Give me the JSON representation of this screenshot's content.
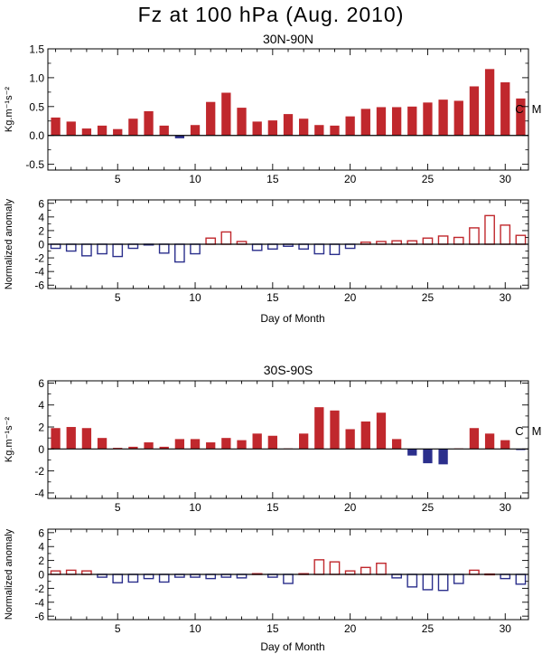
{
  "title": "Fz at 100 hPa (Aug. 2010)",
  "colors": {
    "positive": "#c0282d",
    "negative": "#2b2f8c",
    "axis": "#000000"
  },
  "chart_data": [
    {
      "type": "bar",
      "panel": "30N-90N flux",
      "style": "filled",
      "title": "30N-90N",
      "xlabel": "",
      "ylabel": "Kg.m⁻¹s⁻²",
      "xlim": [
        0.5,
        31.5
      ],
      "ylim": [
        -0.6,
        1.5
      ],
      "xticks": [
        5,
        10,
        15,
        20,
        25,
        30
      ],
      "yticks": [
        -0.5,
        0.0,
        0.5,
        1.0,
        1.5
      ],
      "ytick_labels": [
        "-0.5",
        "0.0",
        "0.5",
        "1.0",
        "1.5"
      ],
      "x": [
        1,
        2,
        3,
        4,
        5,
        6,
        7,
        8,
        9,
        10,
        11,
        12,
        13,
        14,
        15,
        16,
        17,
        18,
        19,
        20,
        21,
        22,
        23,
        24,
        25,
        26,
        27,
        28,
        29,
        30,
        31
      ],
      "values": [
        0.31,
        0.24,
        0.12,
        0.17,
        0.11,
        0.29,
        0.42,
        0.17,
        -0.05,
        0.18,
        0.58,
        0.74,
        0.48,
        0.24,
        0.26,
        0.37,
        0.29,
        0.18,
        0.17,
        0.33,
        0.46,
        0.49,
        0.49,
        0.5,
        0.57,
        0.62,
        0.6,
        0.85,
        1.15,
        0.92,
        0.64
      ],
      "annotations": [
        "C",
        "M"
      ]
    },
    {
      "type": "bar",
      "panel": "30N-90N anomaly",
      "style": "outline",
      "title": "",
      "xlabel": "Day of Month",
      "ylabel": "Normalized anomaly",
      "xlim": [
        0.5,
        31.5
      ],
      "ylim": [
        -6.5,
        6.5
      ],
      "xticks": [
        5,
        10,
        15,
        20,
        25,
        30
      ],
      "yticks": [
        -6,
        -4,
        -2,
        0,
        2,
        4,
        6
      ],
      "ytick_labels": [
        "-6",
        "-4",
        "-2",
        "0",
        "2",
        "4",
        "6"
      ],
      "x": [
        1,
        2,
        3,
        4,
        5,
        6,
        7,
        8,
        9,
        10,
        11,
        12,
        13,
        14,
        15,
        16,
        17,
        18,
        19,
        20,
        21,
        22,
        23,
        24,
        25,
        26,
        27,
        28,
        29,
        30,
        31
      ],
      "values": [
        -0.6,
        -1.0,
        -1.7,
        -1.4,
        -1.8,
        -0.6,
        -0.1,
        -1.3,
        -2.6,
        -1.4,
        0.9,
        1.8,
        0.4,
        -0.9,
        -0.7,
        -0.3,
        -0.7,
        -1.4,
        -1.5,
        -0.6,
        0.3,
        0.4,
        0.5,
        0.5,
        0.9,
        1.2,
        1.0,
        2.4,
        4.2,
        2.8,
        1.3
      ]
    },
    {
      "type": "bar",
      "panel": "30S-90S flux",
      "style": "filled",
      "title": "30S-90S",
      "xlabel": "",
      "ylabel": "Kg.m⁻¹s⁻²",
      "xlim": [
        0.5,
        31.5
      ],
      "ylim": [
        -4.5,
        6.2
      ],
      "xticks": [
        5,
        10,
        15,
        20,
        25,
        30
      ],
      "yticks": [
        -4,
        -2,
        0,
        2,
        4,
        6
      ],
      "ytick_labels": [
        "-4",
        "-2",
        "0",
        "2",
        "4",
        "6"
      ],
      "x": [
        1,
        2,
        3,
        4,
        5,
        6,
        7,
        8,
        9,
        10,
        11,
        12,
        13,
        14,
        15,
        16,
        17,
        18,
        19,
        20,
        21,
        22,
        23,
        24,
        25,
        26,
        27,
        28,
        29,
        30,
        31
      ],
      "values": [
        1.9,
        2.0,
        1.9,
        1.0,
        0.1,
        0.2,
        0.6,
        0.2,
        0.9,
        0.9,
        0.6,
        1.0,
        0.8,
        1.4,
        1.2,
        0.05,
        1.4,
        3.8,
        3.5,
        1.8,
        2.5,
        3.3,
        0.9,
        -0.6,
        -1.3,
        -1.4,
        0.05,
        1.9,
        1.4,
        0.8,
        -0.1
      ],
      "annotations": [
        "C",
        "M"
      ]
    },
    {
      "type": "bar",
      "panel": "30S-90S anomaly",
      "style": "outline",
      "title": "",
      "xlabel": "Day of Month",
      "ylabel": "Normalized anomaly",
      "xlim": [
        0.5,
        31.5
      ],
      "ylim": [
        -6.5,
        6.5
      ],
      "xticks": [
        5,
        10,
        15,
        20,
        25,
        30
      ],
      "yticks": [
        -6,
        -4,
        -2,
        0,
        2,
        4,
        6
      ],
      "ytick_labels": [
        "-6",
        "-4",
        "-2",
        "0",
        "2",
        "4",
        "6"
      ],
      "x": [
        1,
        2,
        3,
        4,
        5,
        6,
        7,
        8,
        9,
        10,
        11,
        12,
        13,
        14,
        15,
        16,
        17,
        18,
        19,
        20,
        21,
        22,
        23,
        24,
        25,
        26,
        27,
        28,
        29,
        30,
        31
      ],
      "values": [
        0.5,
        0.6,
        0.5,
        -0.4,
        -1.2,
        -1.1,
        -0.6,
        -1.1,
        -0.4,
        -0.4,
        -0.6,
        -0.4,
        -0.5,
        0.1,
        -0.4,
        -1.3,
        0.1,
        2.1,
        1.8,
        0.5,
        1.0,
        1.6,
        -0.5,
        -1.8,
        -2.2,
        -2.3,
        -1.3,
        0.6,
        0.05,
        -0.6,
        -1.4
      ]
    }
  ]
}
